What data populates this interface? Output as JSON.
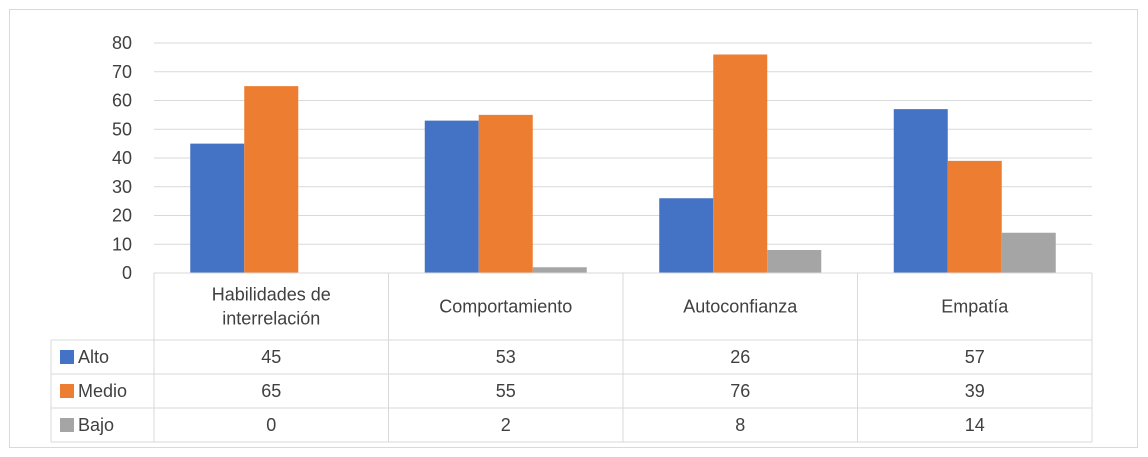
{
  "chart_data": {
    "type": "bar",
    "categories": [
      "Habilidades de interrelación",
      "Comportamiento",
      "Autoconfianza",
      "Empatía"
    ],
    "category_lines": [
      [
        "Habilidades de",
        "interrelación"
      ],
      [
        "Comportamiento"
      ],
      [
        "Autoconfianza"
      ],
      [
        "Empatía"
      ]
    ],
    "series": [
      {
        "name": "Alto",
        "values": [
          45,
          53,
          26,
          57
        ],
        "color": "#4472c4"
      },
      {
        "name": "Medio",
        "values": [
          65,
          55,
          76,
          39
        ],
        "color": "#ed7d31"
      },
      {
        "name": "Bajo",
        "values": [
          0,
          2,
          8,
          14
        ],
        "color": "#a5a5a5"
      }
    ],
    "ylim": [
      0,
      80
    ],
    "yticks": [
      0,
      10,
      20,
      30,
      40,
      50,
      60,
      70,
      80
    ],
    "grid": true,
    "legend": "data-table",
    "title": "",
    "xlabel": "",
    "ylabel": ""
  }
}
